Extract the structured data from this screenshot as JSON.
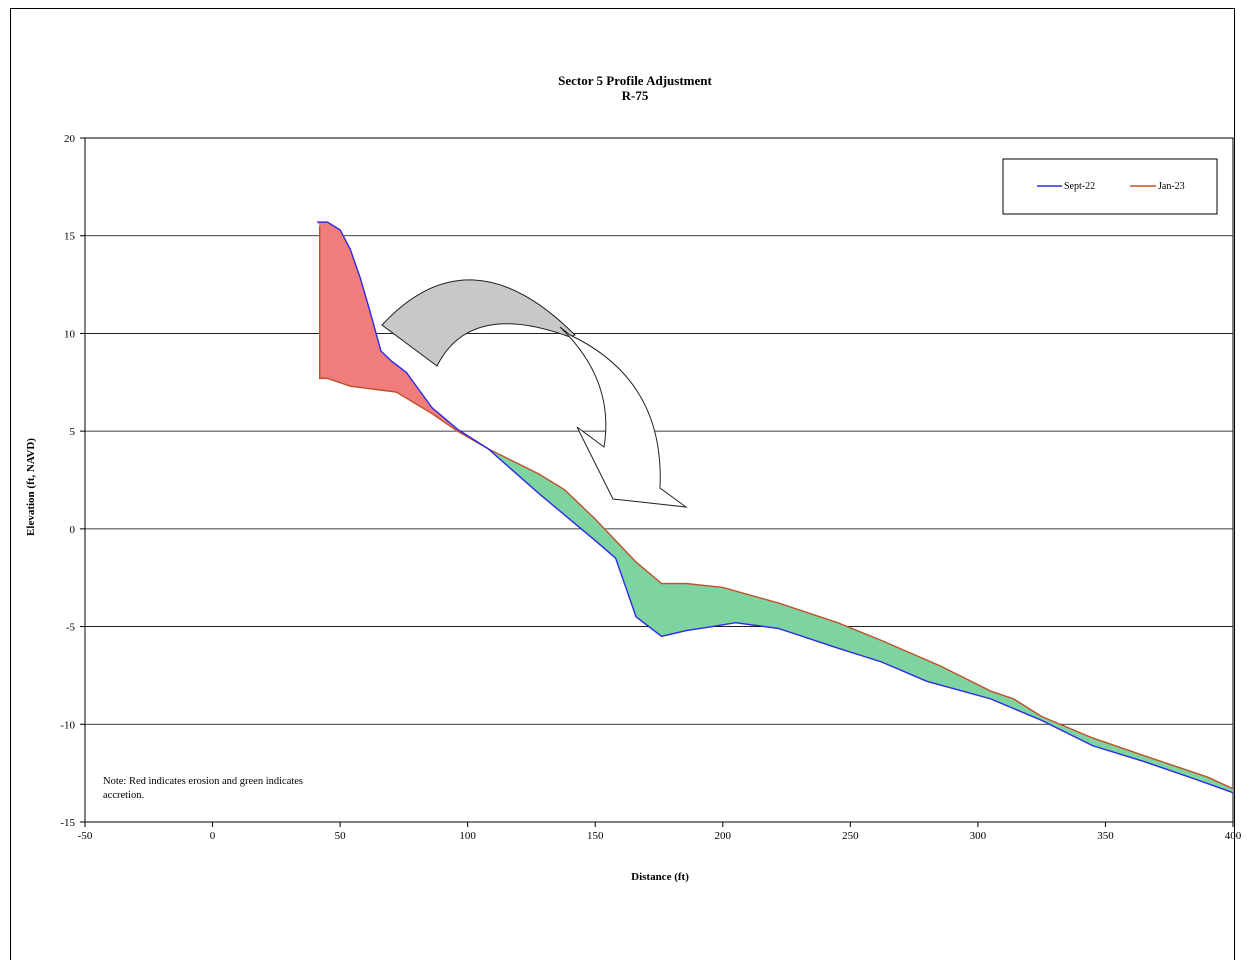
{
  "chart_data": {
    "type": "area",
    "title": "Sector 5 Profile Adjustment",
    "subtitle": "R-75",
    "xlabel": "Distance (ft)",
    "ylabel": "Elevation (ft, NAVD)",
    "xlim": [
      -50,
      400
    ],
    "ylim": [
      -15,
      20
    ],
    "x_ticks": [
      "-50",
      "0",
      "50",
      "100",
      "150",
      "200",
      "250",
      "300",
      "350",
      "400"
    ],
    "y_ticks": [
      "20",
      "15",
      "10",
      "5",
      "0",
      "-5",
      "-10",
      "-15"
    ],
    "grid": "horizontal",
    "legend_position": "top-right",
    "note_lines": [
      "Note: Red indicates erosion and green indicates",
      "accretion."
    ],
    "colors": {
      "sept": "#2a2ae8",
      "jan": "#c0502a",
      "erosion": "#f07c7c",
      "accretion": "#7dd4a0",
      "arrow_gray": "#c8c8c8"
    },
    "series": [
      {
        "name": "Sept-22",
        "x": [
          41,
          45,
          50,
          54,
          58,
          62,
          66,
          70,
          76,
          86,
          96,
          108,
          128,
          150,
          158,
          166,
          176,
          186,
          196,
          205,
          222,
          245,
          262,
          280,
          305,
          325,
          345,
          365,
          385,
          400
        ],
        "y": [
          15.7,
          15.7,
          15.3,
          14.3,
          12.8,
          11.0,
          9.1,
          8.6,
          8.0,
          6.2,
          5.1,
          4.1,
          1.8,
          -0.6,
          -1.5,
          -4.5,
          -5.5,
          -5.2,
          -5.0,
          -4.8,
          -5.1,
          -6.1,
          -6.8,
          -7.8,
          -8.7,
          -9.8,
          -11.1,
          -11.9,
          -12.8,
          -13.5
        ]
      },
      {
        "name": "Jan-23",
        "x": [
          42,
          42,
          45,
          54,
          72,
          86,
          96,
          108,
          128,
          138,
          150,
          158,
          166,
          176,
          186,
          200,
          222,
          245,
          262,
          285,
          305,
          314,
          325,
          345,
          365,
          390,
          400
        ],
        "y": [
          15.5,
          7.7,
          7.7,
          7.3,
          7.0,
          5.9,
          5.0,
          4.1,
          2.8,
          2.0,
          0.5,
          -0.6,
          -1.7,
          -2.8,
          -2.8,
          -3.0,
          -3.8,
          -4.8,
          -5.7,
          -7.0,
          -8.3,
          -8.7,
          -9.6,
          -10.7,
          -11.6,
          -12.7,
          -13.3
        ]
      }
    ]
  }
}
